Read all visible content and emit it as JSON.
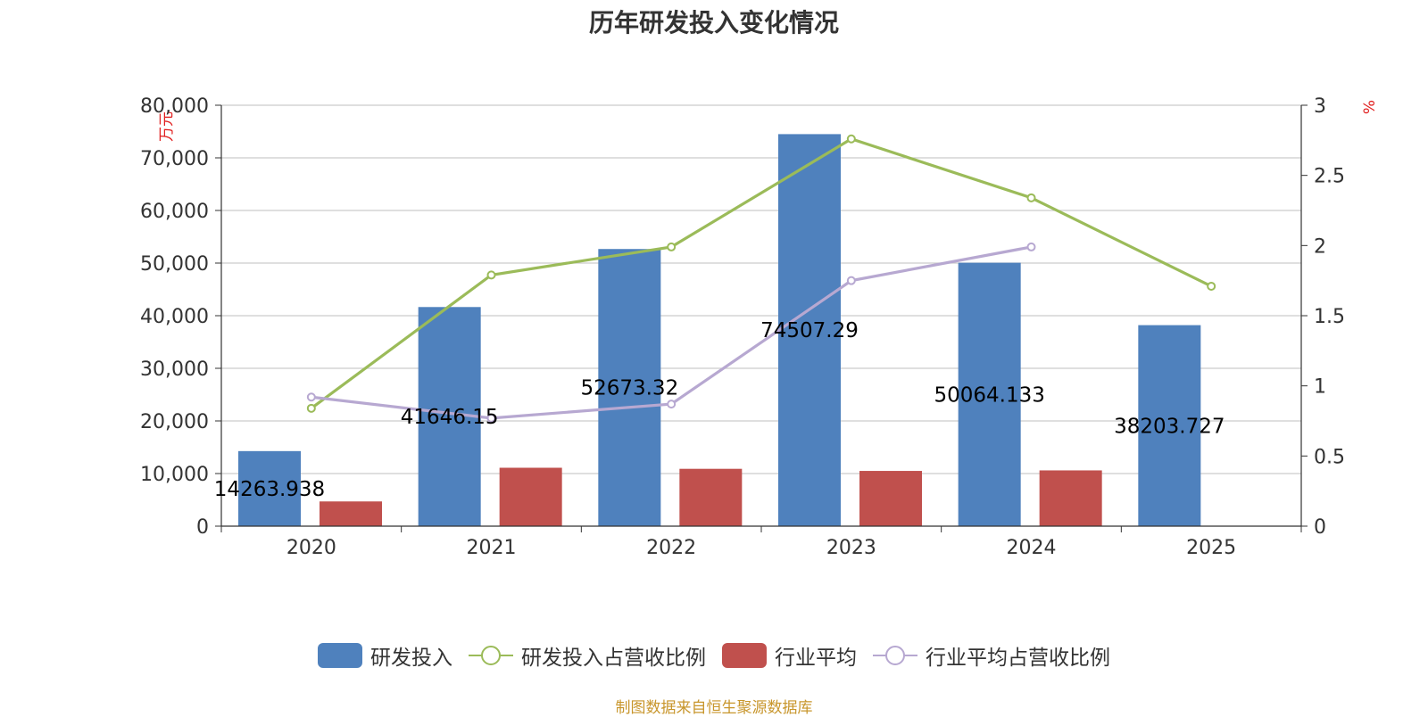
{
  "title": "历年研发投入变化情况",
  "source": "制图数据来自恒生聚源数据库",
  "colors": {
    "rd": "#4f81bd",
    "industry": "#c0504d",
    "rd_ratio": "#9bbb59",
    "industry_ratio": "#b7a8d1"
  },
  "chart_data": {
    "type": "bar",
    "title": "历年研发投入变化情况",
    "categories": [
      "2020",
      "2021",
      "2022",
      "2023",
      "2024",
      "2025"
    ],
    "y_left": {
      "unit": "万元",
      "ylim": [
        0,
        80000
      ],
      "ticks": [
        0,
        10000,
        20000,
        30000,
        40000,
        50000,
        60000,
        70000,
        80000
      ],
      "tick_labels": [
        "0",
        "10,000",
        "20,000",
        "30,000",
        "40,000",
        "50,000",
        "60,000",
        "70,000",
        "80,000"
      ]
    },
    "y_right": {
      "unit": "%",
      "ylim": [
        0,
        3
      ],
      "ticks": [
        0,
        0.5,
        1,
        1.5,
        2,
        2.5,
        3
      ],
      "tick_labels": [
        "0",
        "0.5",
        "1",
        "1.5",
        "2",
        "2.5",
        "3"
      ]
    },
    "grid": true,
    "legend_position": "bottom",
    "series": [
      {
        "name": "研发投入",
        "kind": "bar",
        "axis": "left",
        "values": [
          14263.938,
          41646.15,
          52673.32,
          74507.29,
          50064.133,
          38203.727
        ],
        "data_labels": [
          "14263.938",
          "41646.15",
          "52673.32",
          "74507.29",
          "50064.133",
          "38203.727"
        ]
      },
      {
        "name": "研发投入占营收比例",
        "kind": "line",
        "axis": "right",
        "values": [
          0.84,
          1.79,
          1.99,
          2.76,
          2.34,
          1.71
        ]
      },
      {
        "name": "行业平均",
        "kind": "bar",
        "axis": "left",
        "values": [
          4700,
          11100,
          10900,
          10500,
          10600,
          null
        ]
      },
      {
        "name": "行业平均占营收比例",
        "kind": "line",
        "axis": "right",
        "values": [
          0.92,
          0.77,
          0.87,
          1.75,
          1.99,
          null
        ]
      }
    ]
  }
}
